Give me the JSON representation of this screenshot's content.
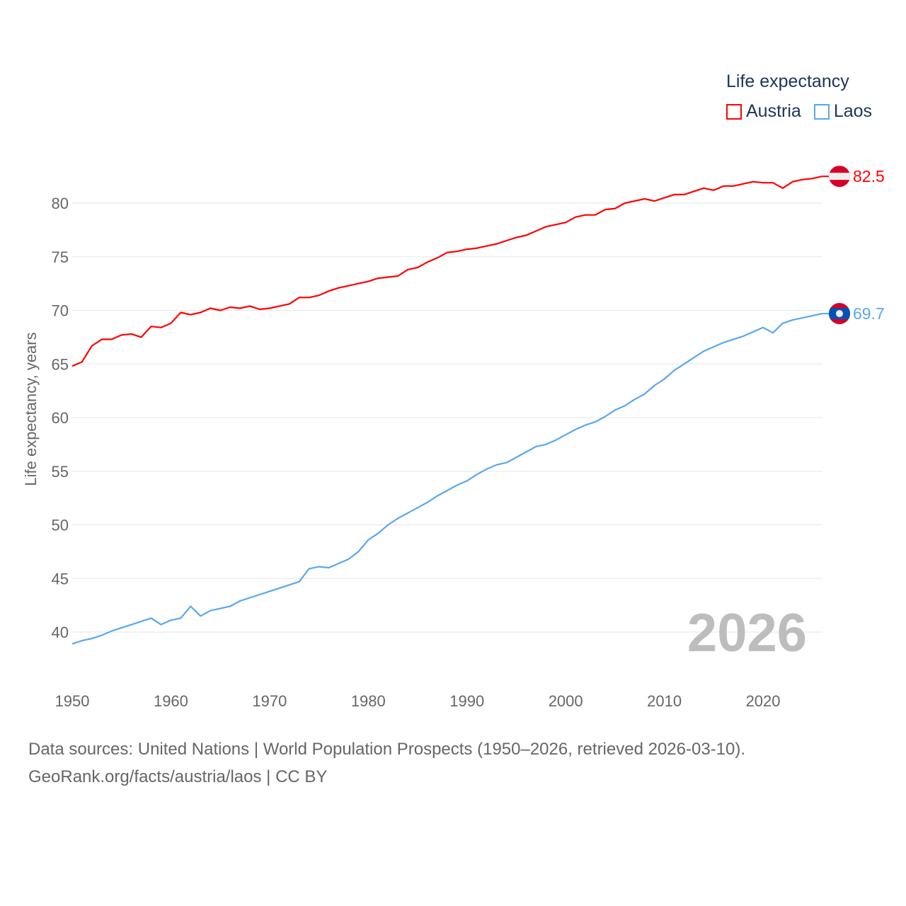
{
  "chart_data": {
    "type": "line",
    "title": "",
    "legend_title": "Life expectancy",
    "legend_placement": "top-right",
    "xlabel": "",
    "ylabel": "Life expectancy, years",
    "xlim": [
      1950,
      2026
    ],
    "ylim": [
      37,
      84
    ],
    "x_ticks": [
      "1950",
      "1960",
      "1970",
      "1980",
      "1990",
      "2000",
      "2010",
      "2020"
    ],
    "y_ticks": [
      "40",
      "45",
      "50",
      "55",
      "60",
      "65",
      "70",
      "75",
      "80"
    ],
    "grid": true,
    "year_watermark": "2026",
    "x": [
      1950,
      1951,
      1952,
      1953,
      1954,
      1955,
      1956,
      1957,
      1958,
      1959,
      1960,
      1961,
      1962,
      1963,
      1964,
      1965,
      1966,
      1967,
      1968,
      1969,
      1970,
      1971,
      1972,
      1973,
      1974,
      1975,
      1976,
      1977,
      1978,
      1979,
      1980,
      1981,
      1982,
      1983,
      1984,
      1985,
      1986,
      1987,
      1988,
      1989,
      1990,
      1991,
      1992,
      1993,
      1994,
      1995,
      1996,
      1997,
      1998,
      1999,
      2000,
      2001,
      2002,
      2003,
      2004,
      2005,
      2006,
      2007,
      2008,
      2009,
      2010,
      2011,
      2012,
      2013,
      2014,
      2015,
      2016,
      2017,
      2018,
      2019,
      2020,
      2021,
      2022,
      2023,
      2024,
      2025,
      2026
    ],
    "series": [
      {
        "name": "Austria",
        "color": "#ff0000",
        "end_label": "82.5",
        "values": [
          64.8,
          65.2,
          66.7,
          67.3,
          67.3,
          67.7,
          67.8,
          67.5,
          68.5,
          68.4,
          68.8,
          69.8,
          69.6,
          69.8,
          70.2,
          70.0,
          70.3,
          70.2,
          70.4,
          70.1,
          70.2,
          70.4,
          70.6,
          71.2,
          71.2,
          71.4,
          71.8,
          72.1,
          72.3,
          72.5,
          72.7,
          73.0,
          73.1,
          73.2,
          73.8,
          74.0,
          74.5,
          74.9,
          75.4,
          75.5,
          75.7,
          75.8,
          76.0,
          76.2,
          76.5,
          76.8,
          77.0,
          77.4,
          77.8,
          78.0,
          78.2,
          78.7,
          78.9,
          78.9,
          79.4,
          79.5,
          80.0,
          80.2,
          80.4,
          80.2,
          80.5,
          80.8,
          80.8,
          81.1,
          81.4,
          81.2,
          81.6,
          81.6,
          81.8,
          82.0,
          81.9,
          81.9,
          81.4,
          82.0,
          82.2,
          82.3,
          82.5
        ]
      },
      {
        "name": "Laos",
        "color": "#5aa7ee",
        "end_label": "69.7",
        "values": [
          38.9,
          39.2,
          39.4,
          39.7,
          40.1,
          40.4,
          40.7,
          41.0,
          41.3,
          40.7,
          41.1,
          41.3,
          42.4,
          41.5,
          42.0,
          42.2,
          42.4,
          42.9,
          43.2,
          43.5,
          43.8,
          44.1,
          44.4,
          44.7,
          45.9,
          46.1,
          46.0,
          46.4,
          46.8,
          47.5,
          48.6,
          49.2,
          50.0,
          50.6,
          51.1,
          51.6,
          52.1,
          52.7,
          53.2,
          53.7,
          54.1,
          54.7,
          55.2,
          55.6,
          55.8,
          56.3,
          56.8,
          57.3,
          57.5,
          57.9,
          58.4,
          58.9,
          59.3,
          59.6,
          60.1,
          60.7,
          61.1,
          61.7,
          62.2,
          63.0,
          63.6,
          64.4,
          65.0,
          65.6,
          66.2,
          66.6,
          67.0,
          67.3,
          67.6,
          68.0,
          68.4,
          67.9,
          68.8,
          69.1,
          69.3,
          69.5,
          69.7
        ]
      }
    ]
  },
  "footer": {
    "line1": "Data sources: United Nations | World Population Prospects (1950–2026, retrieved 2026-03-10).",
    "line2": "GeoRank.org/facts/austria/laos | CC BY"
  }
}
